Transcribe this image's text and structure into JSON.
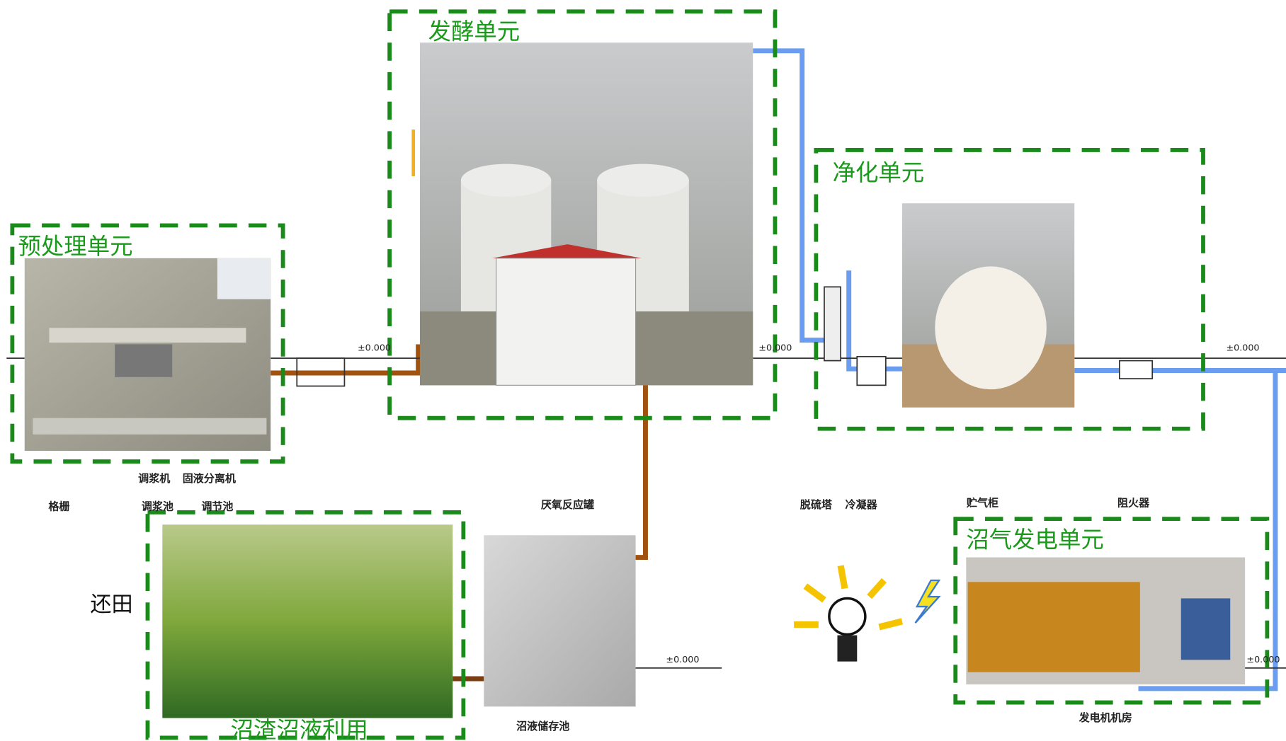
{
  "units": [
    {
      "label": "预处理单元"
    },
    {
      "label": "发酵单元"
    },
    {
      "label": "净化单元"
    },
    {
      "label": "沼气发电单元"
    },
    {
      "label": "沼渣沼液利用"
    }
  ],
  "field_label": "还田",
  "elevation_mark": "±0.000",
  "equipment_labels": [
    "格栅",
    "调浆机",
    "固液分离机",
    "调浆池",
    "调节池",
    "厌氧反应罐",
    "沼液储存池",
    "脱硫塔",
    "冷凝器",
    "贮气柜",
    "阻火器",
    "发电机机房"
  ]
}
